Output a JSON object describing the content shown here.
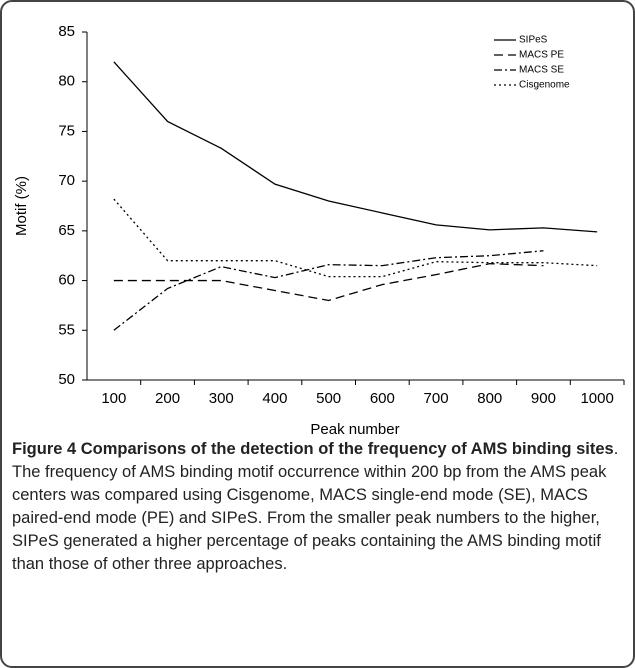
{
  "chart_data": {
    "type": "line",
    "x_label": "Peak number",
    "y_label": "Motif (%)",
    "categories": [
      "100",
      "200",
      "300",
      "400",
      "500",
      "600",
      "700",
      "800",
      "900",
      "1000"
    ],
    "series": [
      {
        "name": "SIPeS",
        "color": "#000000",
        "style": "solid",
        "values": [
          82,
          76,
          73.3,
          69.7,
          68,
          66.8,
          65.6,
          65.1,
          65.3,
          64.9
        ]
      },
      {
        "name": "MACS PE",
        "color": "#000000",
        "style": "dashed",
        "values": [
          60,
          60,
          60,
          59,
          58,
          59.6,
          60.6,
          61.7,
          61.5,
          null
        ]
      },
      {
        "name": "MACS SE",
        "color": "#000000",
        "style": "dashdot",
        "values": [
          55,
          59.2,
          61.4,
          60.3,
          61.6,
          61.5,
          62.3,
          62.5,
          63,
          null
        ]
      },
      {
        "name": "Cisgenome",
        "color": "#000000",
        "style": "dotted",
        "values": [
          68.2,
          62,
          62,
          62,
          60.4,
          60.4,
          61.9,
          61.8,
          61.8,
          61.5
        ]
      }
    ],
    "ylim": [
      50,
      85
    ],
    "yticks": [
      50,
      55,
      60,
      65,
      70,
      75,
      80,
      85
    ],
    "grid": false,
    "legend": "top-right"
  },
  "caption": {
    "title": "Figure 4 Comparisons of the detection of the frequency of AMS binding sites",
    "text": ". The frequency of AMS binding motif occurrence within 200 bp from the AMS peak centers was compared using Cisgenome, MACS single-end mode (SE), MACS paired-end mode (PE) and SIPeS. From the smaller peak numbers to the higher, SIPeS generated a higher percentage of peaks containing the AMS binding motif than those of other three approaches."
  }
}
